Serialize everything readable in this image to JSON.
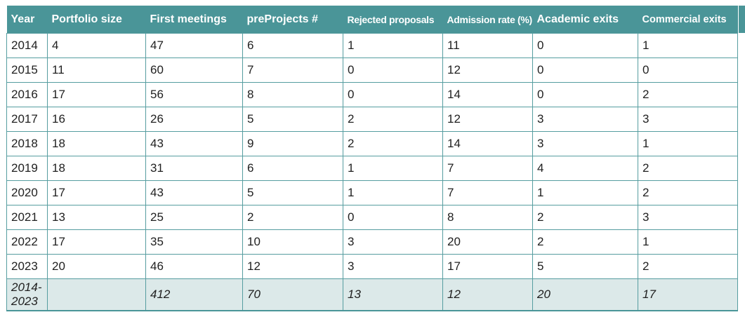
{
  "chart_data": {
    "type": "table",
    "title": "",
    "columns": [
      "Year",
      "Portfolio size",
      "First meetings",
      "preProjects #",
      "Rejected proposals",
      "Admission rate (%)",
      "Academic exits",
      "Commercial exits"
    ],
    "rows": [
      [
        "2014",
        "4",
        "47",
        "6",
        "1",
        "11",
        "0",
        "1"
      ],
      [
        "2015",
        "11",
        "60",
        "7",
        "0",
        "12",
        "0",
        "0"
      ],
      [
        "2016",
        "17",
        "56",
        "8",
        "0",
        "14",
        "0",
        "2"
      ],
      [
        "2017",
        "16",
        "26",
        "5",
        "2",
        "12",
        "3",
        "3"
      ],
      [
        "2018",
        "18",
        "43",
        "9",
        "2",
        "14",
        "3",
        "1"
      ],
      [
        "2019",
        "18",
        "31",
        "6",
        "1",
        "7",
        "4",
        "2"
      ],
      [
        "2020",
        "17",
        "43",
        "5",
        "1",
        "7",
        "1",
        "2"
      ],
      [
        "2021",
        "13",
        "25",
        "2",
        "0",
        "8",
        "2",
        "3"
      ],
      [
        "2022",
        "17",
        "35",
        "10",
        "3",
        "20",
        "2",
        "1"
      ],
      [
        "2023",
        "20",
        "46",
        "12",
        "3",
        "17",
        "5",
        "2"
      ]
    ],
    "summary_row": [
      "2014-2023",
      "",
      "412",
      "70",
      "13",
      "12",
      "20",
      "17"
    ]
  },
  "colors": {
    "header_background": "#4a9598",
    "header_text": "#ffffff",
    "border": "#569da0",
    "summary_background": "#dce9e9",
    "body_text": "#1f1f1f",
    "bottom_rule": "#4a9598"
  }
}
